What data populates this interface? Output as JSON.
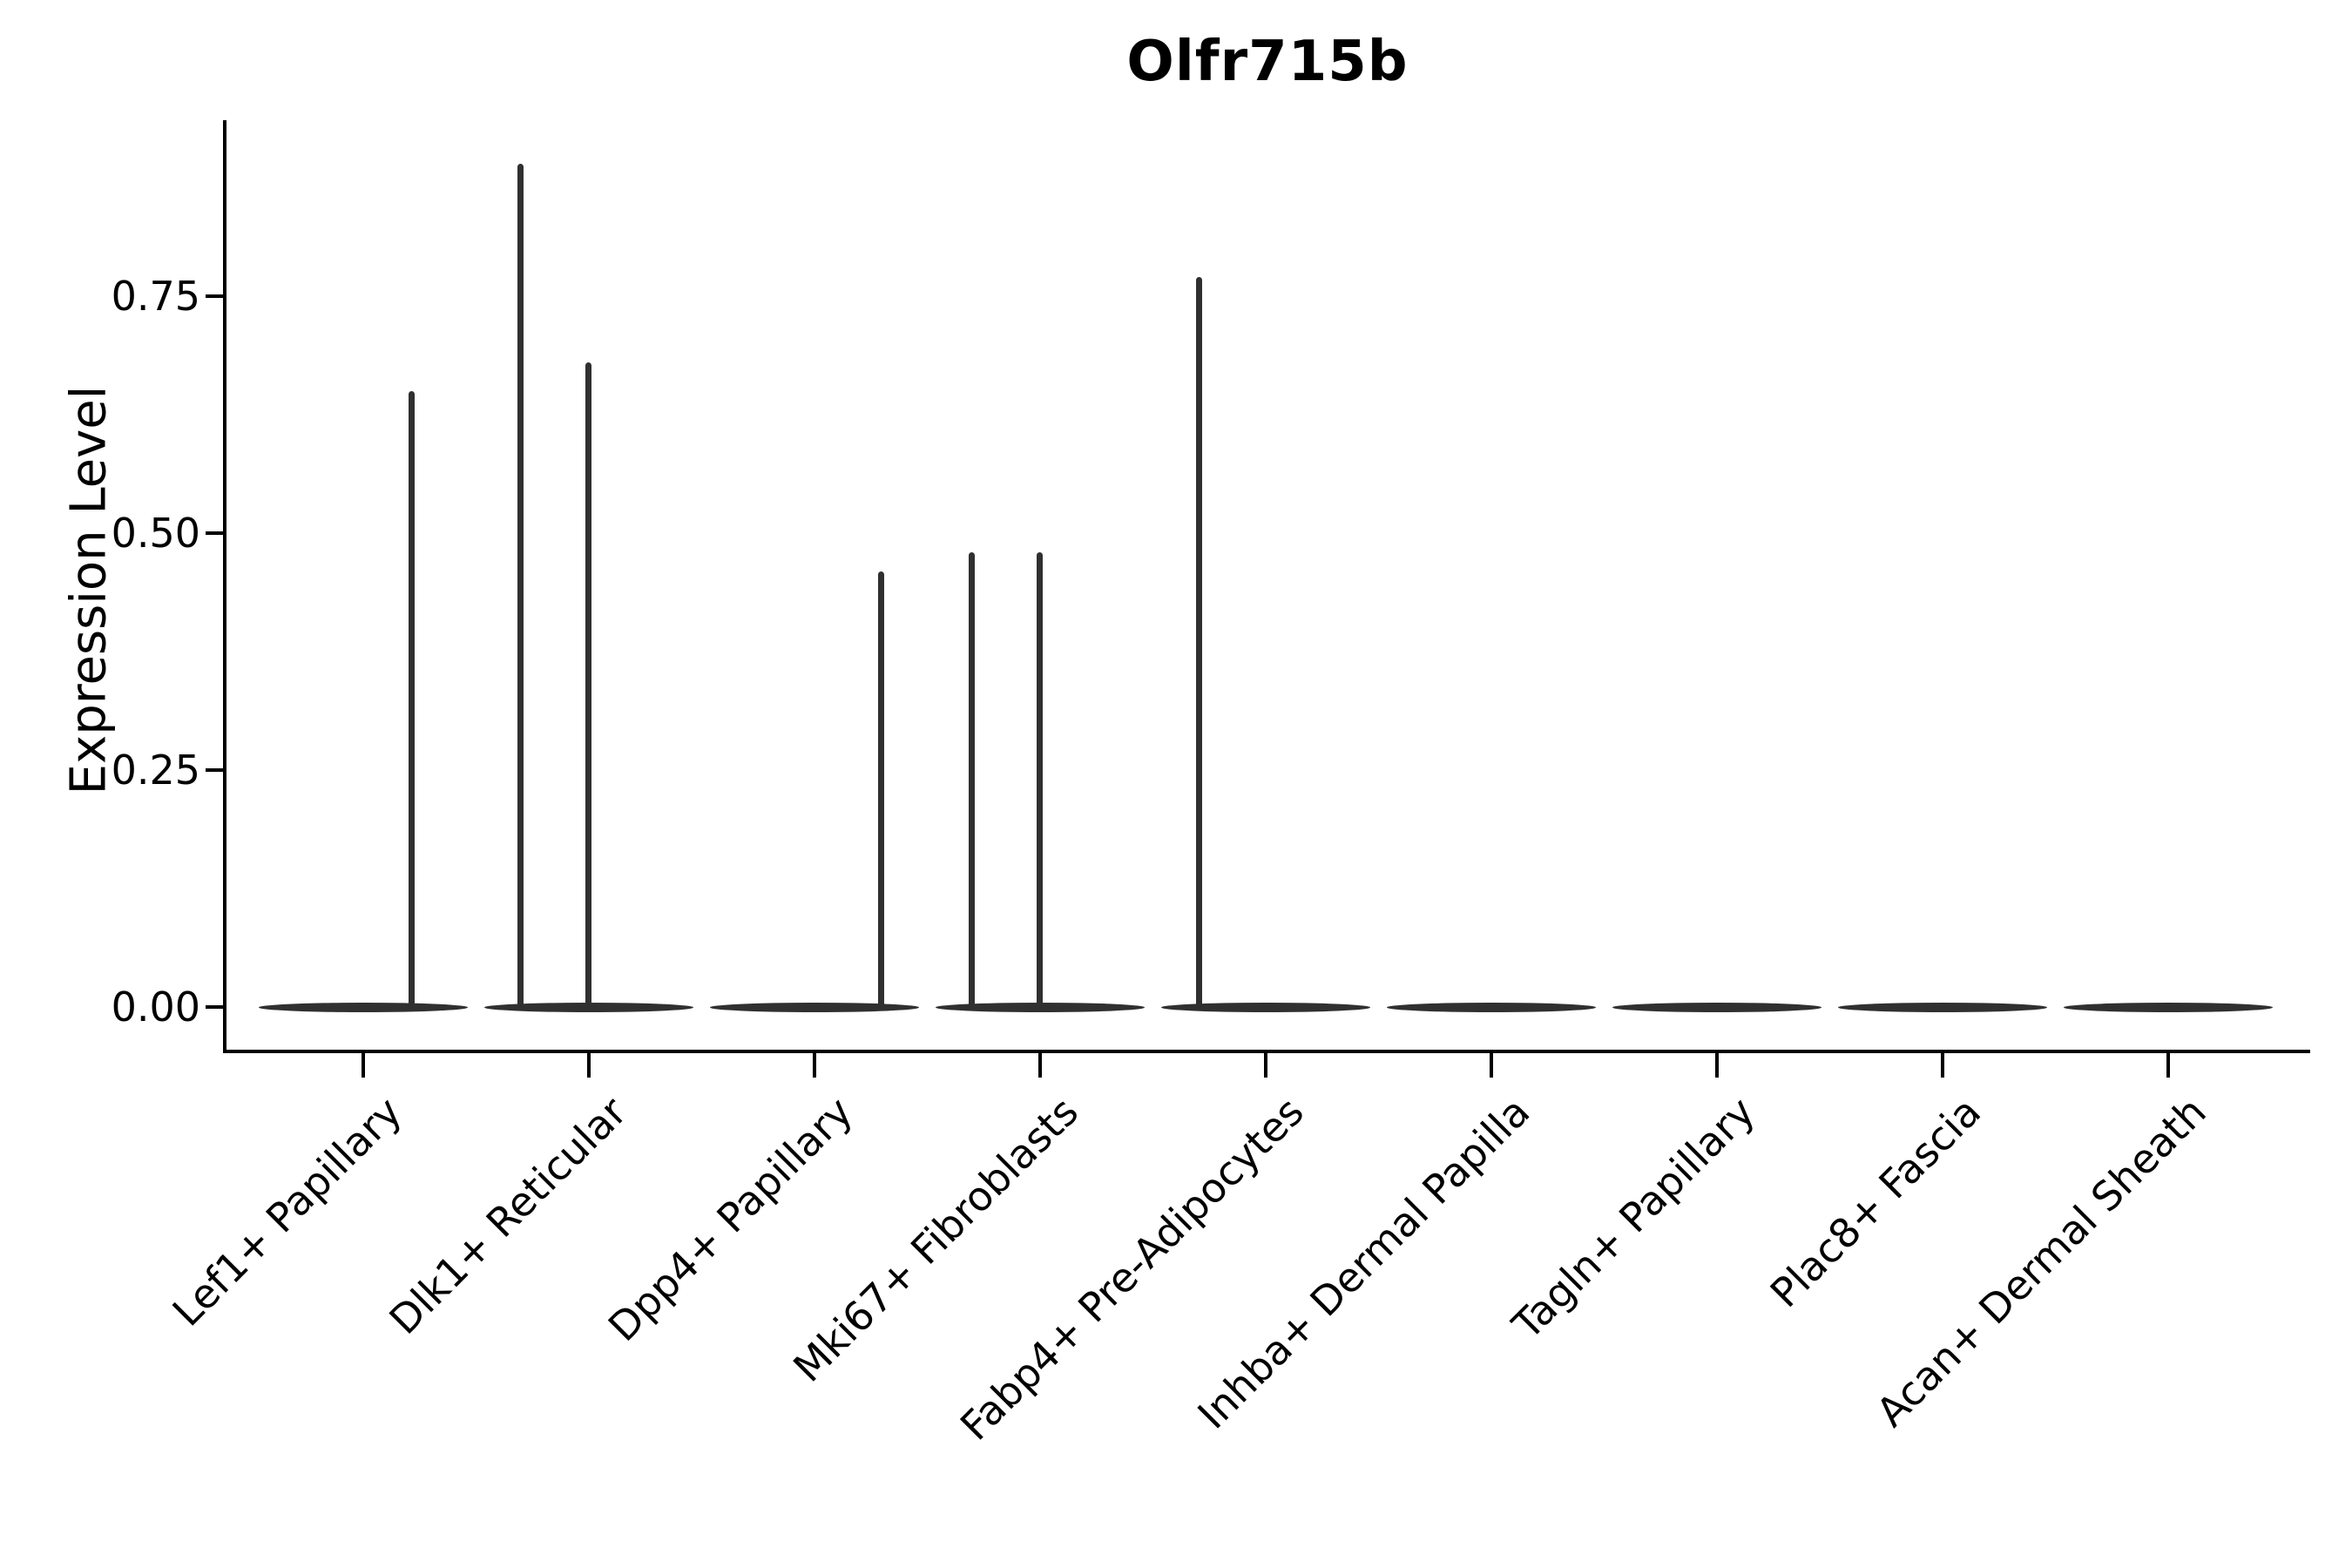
{
  "figure": {
    "background": "#ffffff",
    "axis_color": "#000000",
    "text_color": "#000000",
    "violin_color": "#303030"
  },
  "chart_data": {
    "type": "violin",
    "title": "Olfr715b",
    "xlabel": "",
    "ylabel": "Expression Level",
    "legend": "none",
    "grid": "off",
    "ylim": [
      -0.05,
      0.93
    ],
    "yticks": [
      0,
      0.25,
      0.5,
      0.75
    ],
    "ytick_labels": [
      "0.00",
      "0.25",
      "0.50",
      "0.75"
    ],
    "categories": [
      "Lef1+ Papillary",
      "Dlk1+ Reticular",
      "Dpp4+ Papillary",
      "Mki67+ Fibroblasts",
      "Fabp4+ Pre-Adipocytes",
      "Inhba+ Dermal Papilla",
      "Tagln+ Papillary",
      "Plac8+ Fascia",
      "Acan+ Dermal Sheath"
    ],
    "violins": [
      {
        "category": "Lef1+ Papillary",
        "baseline": 0,
        "spikes": [
          {
            "dx": 55,
            "max": 0.65
          }
        ]
      },
      {
        "category": "Dlk1+ Reticular",
        "baseline": 0,
        "spikes": [
          {
            "dx": -79,
            "max": 0.89
          },
          {
            "dx": -1,
            "max": 0.68
          }
        ]
      },
      {
        "category": "Dpp4+ Papillary",
        "baseline": 0,
        "spikes": [
          {
            "dx": 76,
            "max": 0.46
          }
        ]
      },
      {
        "category": "Mki67+ Fibroblasts",
        "baseline": 0,
        "spikes": [
          {
            "dx": -79,
            "max": 0.48
          },
          {
            "dx": -1,
            "max": 0.48
          }
        ]
      },
      {
        "category": "Fabp4+ Pre-Adipocytes",
        "baseline": 0,
        "spikes": [
          {
            "dx": -77,
            "max": 0.77
          }
        ]
      },
      {
        "category": "Inhba+ Dermal Papilla",
        "baseline": 0,
        "spikes": []
      },
      {
        "category": "Tagln+ Papillary",
        "baseline": 0,
        "spikes": []
      },
      {
        "category": "Plac8+ Fascia",
        "baseline": 0,
        "spikes": []
      },
      {
        "category": "Acan+ Dermal Sheath",
        "baseline": 0,
        "spikes": []
      }
    ]
  }
}
